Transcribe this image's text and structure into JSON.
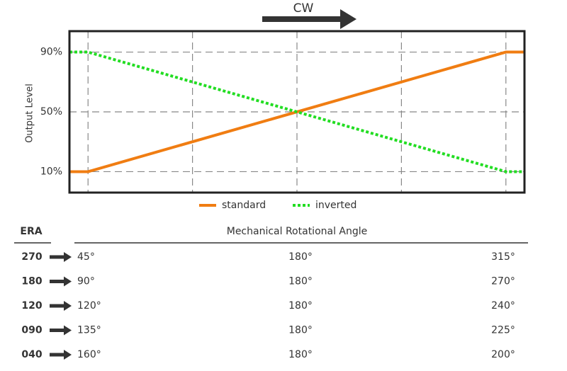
{
  "chart_data": {
    "type": "line",
    "title": "CW",
    "y_label": "Output Level",
    "x": [
      33,
      45,
      315,
      327
    ],
    "xlim": [
      33,
      327
    ],
    "xticks": [
      45,
      112.5,
      180,
      247.5,
      315
    ],
    "ylim": [
      -4,
      104
    ],
    "yticks": [
      {
        "value": 10,
        "label": "10%"
      },
      {
        "value": 50,
        "label": "50%"
      },
      {
        "value": 90,
        "label": "90%"
      }
    ],
    "grid": true,
    "series": [
      {
        "name": "standard",
        "color": "#f07d12",
        "style": "solid",
        "values": [
          10,
          10,
          90,
          90
        ]
      },
      {
        "name": "inverted",
        "color": "#22dd22",
        "style": "dotted",
        "values": [
          90,
          90,
          10,
          10
        ]
      }
    ]
  },
  "table": {
    "header": [
      "ERA",
      "Mechanical Rotational Angle"
    ],
    "rows": [
      [
        "270",
        "45°",
        "180°",
        "315°"
      ],
      [
        "180",
        "90°",
        "180°",
        "270°"
      ],
      [
        "120",
        "120°",
        "180°",
        "240°"
      ],
      [
        "090",
        "135°",
        "180°",
        "225°"
      ],
      [
        "040",
        "160°",
        "180°",
        "200°"
      ]
    ]
  }
}
